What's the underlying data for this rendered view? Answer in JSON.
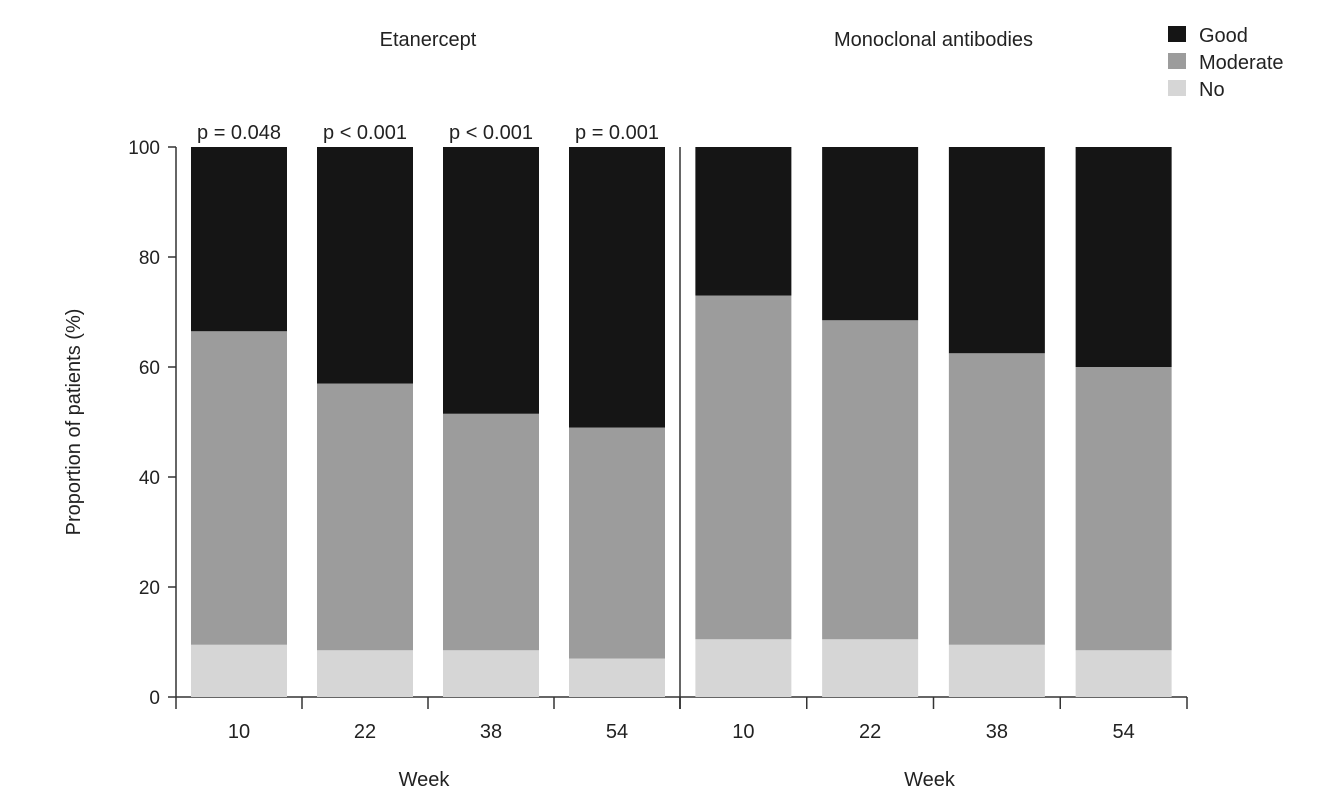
{
  "chart_data": {
    "type": "bar",
    "stacked": true,
    "ylabel": "Proportion of patients (%)",
    "ylim": [
      0,
      100
    ],
    "yticks": [
      0,
      20,
      40,
      60,
      80,
      100
    ],
    "grid": false,
    "legend": {
      "placement": "top-right",
      "entries": [
        "Good",
        "Moderate",
        "No"
      ]
    },
    "colors": {
      "Good": "#151515",
      "Moderate": "#9c9c9c",
      "No": "#d6d6d6"
    },
    "panels": [
      {
        "title": "Etanercept",
        "xlabel": "Week",
        "categories": [
          "10",
          "22",
          "38",
          "54"
        ],
        "annotations": [
          "p = 0.048",
          "p < 0.001",
          "p < 0.001",
          "p = 0.001"
        ],
        "series": [
          {
            "name": "No",
            "values": [
              9.5,
              8.5,
              8.5,
              7.0
            ]
          },
          {
            "name": "Moderate",
            "values": [
              57.0,
              48.5,
              43.0,
              42.0
            ]
          },
          {
            "name": "Good",
            "values": [
              33.5,
              43.0,
              48.5,
              51.0
            ]
          }
        ]
      },
      {
        "title": "Monoclonal antibodies",
        "xlabel": "Week",
        "categories": [
          "10",
          "22",
          "38",
          "54"
        ],
        "annotations": [
          "",
          "",
          "",
          ""
        ],
        "series": [
          {
            "name": "No",
            "values": [
              10.5,
              10.5,
              9.5,
              8.5
            ]
          },
          {
            "name": "Moderate",
            "values": [
              62.5,
              58.0,
              53.0,
              51.5
            ]
          },
          {
            "name": "Good",
            "values": [
              27.0,
              31.5,
              37.5,
              40.0
            ]
          }
        ]
      }
    ]
  }
}
